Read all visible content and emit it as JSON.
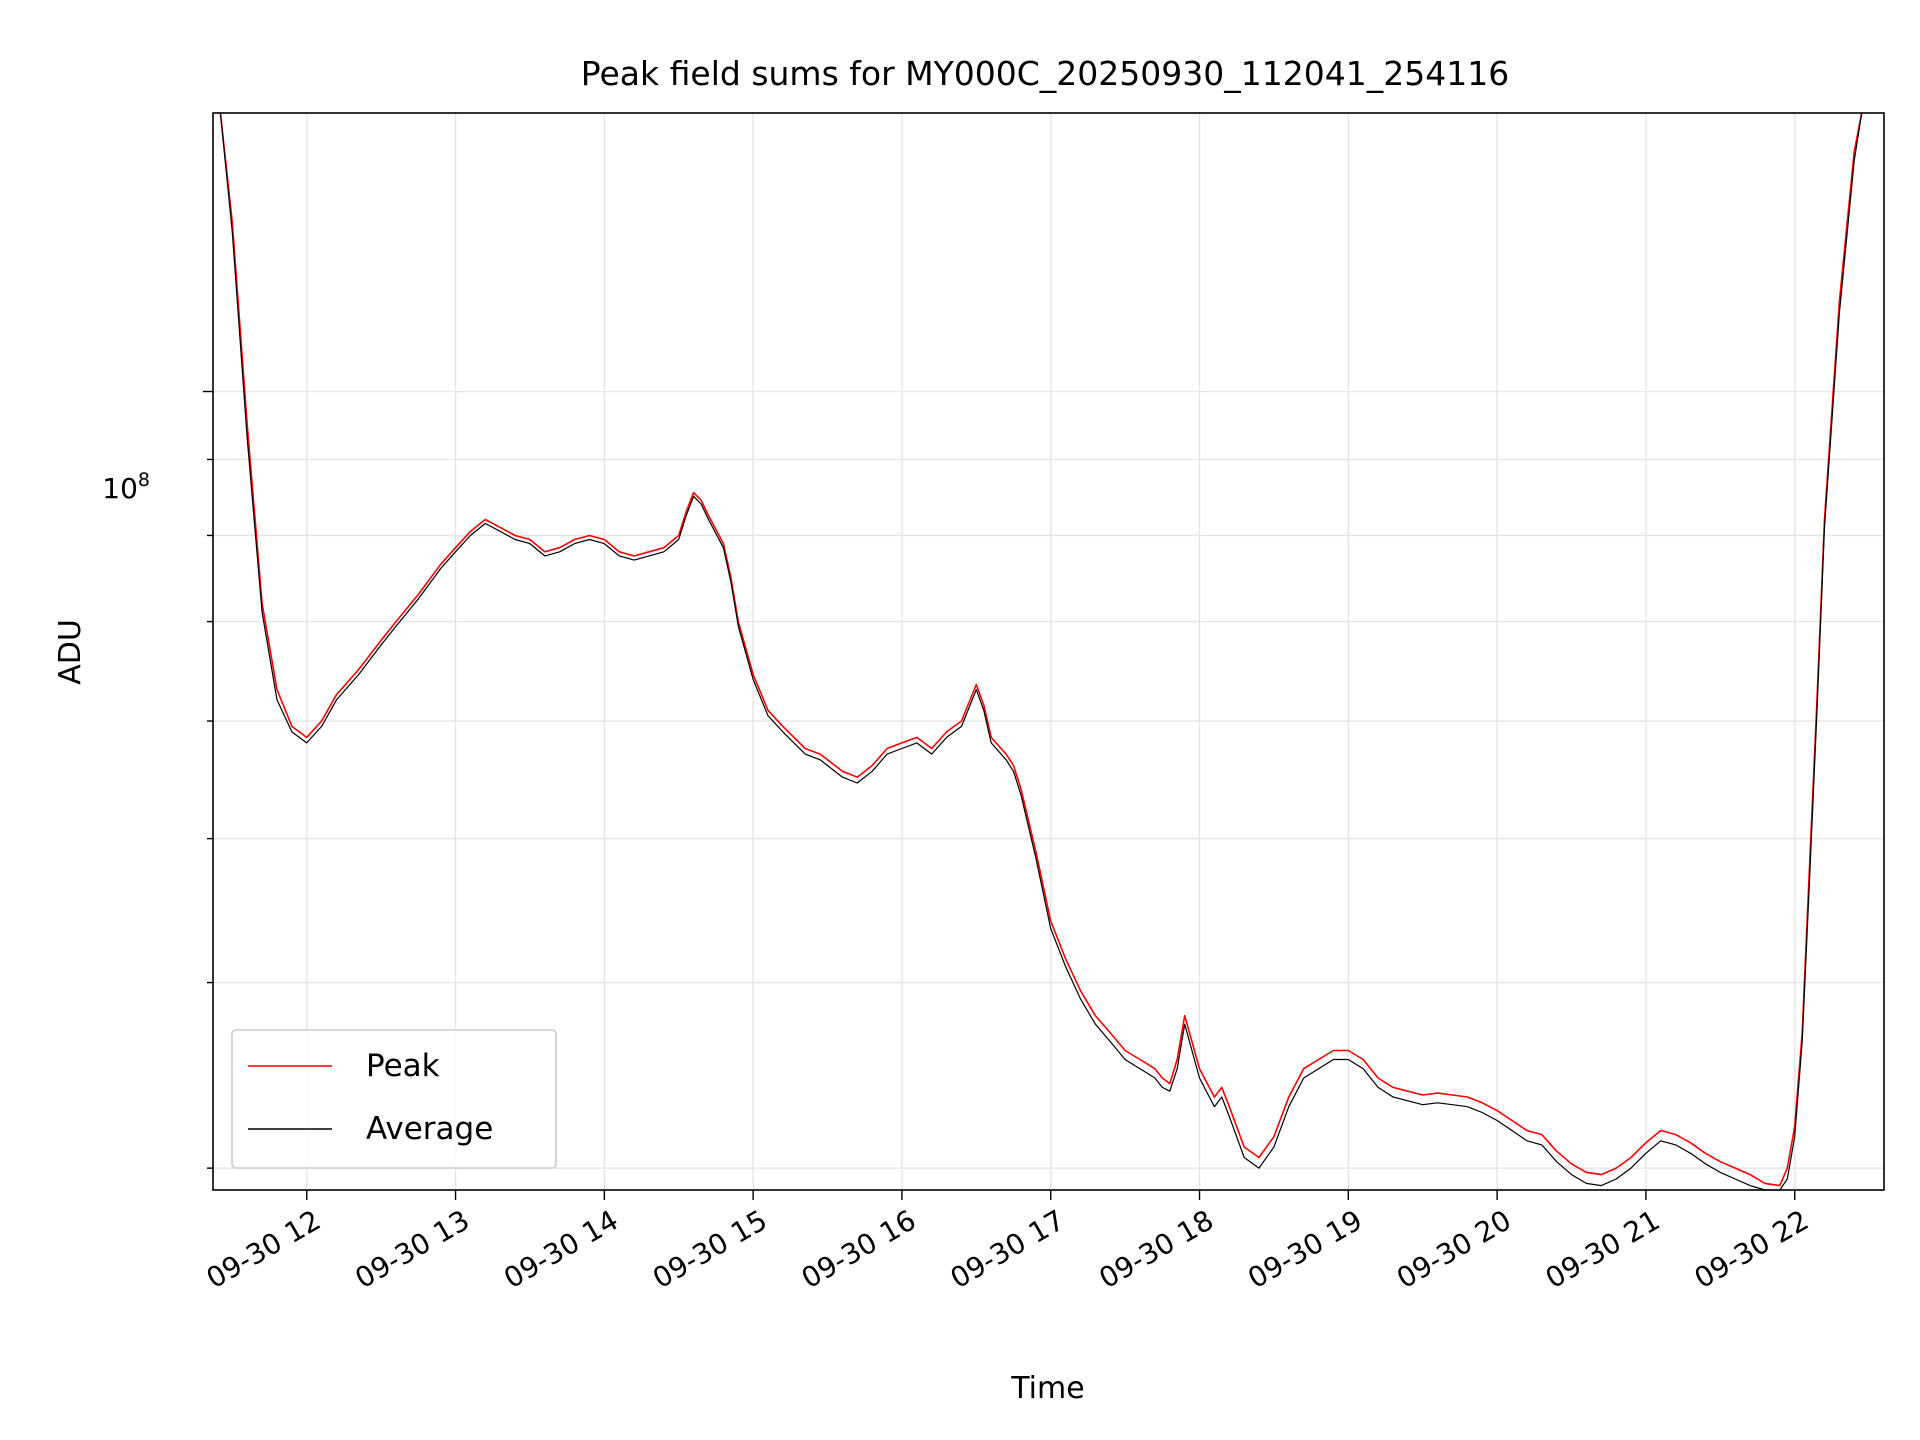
{
  "chart_data": {
    "type": "line",
    "title": "Peak field sums for MY000C_20250930_112041_254116",
    "xlabel": "Time",
    "ylabel": "ADU",
    "yscale": "log",
    "grid": true,
    "legend_position": "lower-left",
    "x_unit": "2025-09-30 local hour (decimal)",
    "xlim": [
      11.37,
      22.6
    ],
    "ylim": [
      29000000,
      154000000
    ],
    "x_ticks": [
      12,
      13,
      14,
      15,
      16,
      17,
      18,
      19,
      20,
      21,
      22
    ],
    "x_tick_labels": [
      "09-30 12",
      "09-30 13",
      "09-30 14",
      "09-30 15",
      "09-30 16",
      "09-30 17",
      "09-30 18",
      "09-30 19",
      "09-30 20",
      "09-30 21",
      "09-30 22"
    ],
    "y_major_tick_labels": [
      {
        "value": 100000000,
        "base": "10",
        "exp": "8"
      }
    ],
    "series": [
      {
        "name": "Peak",
        "color": "#ff0000",
        "x": [
          11.42,
          11.5,
          11.6,
          11.7,
          11.8,
          11.9,
          12.0,
          12.1,
          12.2,
          12.35,
          12.5,
          12.6,
          12.75,
          12.9,
          13.0,
          13.1,
          13.2,
          13.3,
          13.4,
          13.5,
          13.6,
          13.7,
          13.8,
          13.9,
          14.0,
          14.1,
          14.2,
          14.3,
          14.4,
          14.5,
          14.55,
          14.6,
          14.65,
          14.7,
          14.8,
          14.85,
          14.9,
          15.0,
          15.1,
          15.2,
          15.35,
          15.45,
          15.5,
          15.6,
          15.7,
          15.8,
          15.9,
          16.0,
          16.1,
          16.2,
          16.3,
          16.4,
          16.5,
          16.55,
          16.6,
          16.7,
          16.75,
          16.8,
          16.9,
          17.0,
          17.1,
          17.2,
          17.3,
          17.4,
          17.5,
          17.6,
          17.7,
          17.75,
          17.8,
          17.85,
          17.9,
          18.0,
          18.1,
          18.15,
          18.2,
          18.3,
          18.4,
          18.5,
          18.6,
          18.7,
          18.8,
          18.9,
          19.0,
          19.1,
          19.2,
          19.3,
          19.4,
          19.5,
          19.6,
          19.7,
          19.8,
          19.9,
          20.0,
          20.1,
          20.2,
          20.3,
          20.4,
          20.5,
          20.6,
          20.7,
          20.8,
          20.9,
          21.0,
          21.1,
          21.2,
          21.3,
          21.4,
          21.5,
          21.6,
          21.7,
          21.8,
          21.9,
          21.95,
          22.0,
          22.05,
          22.1,
          22.15,
          22.2,
          22.3,
          22.4,
          22.45
        ],
        "y": [
          154000000,
          130000000,
          95000000,
          72000000,
          63000000,
          59500000,
          58500000,
          60000000,
          62500000,
          65000000,
          68000000,
          70000000,
          73000000,
          76500000,
          78500000,
          80500000,
          82000000,
          81000000,
          80000000,
          79500000,
          78000000,
          78500000,
          79500000,
          80000000,
          79500000,
          78000000,
          77500000,
          78000000,
          78500000,
          80000000,
          83000000,
          85500000,
          84500000,
          82500000,
          79000000,
          75000000,
          70000000,
          64500000,
          61000000,
          59500000,
          57500000,
          57000000,
          56500000,
          55500000,
          55000000,
          56000000,
          57500000,
          58000000,
          58500000,
          57500000,
          59000000,
          60000000,
          63500000,
          61500000,
          58500000,
          57000000,
          56000000,
          54000000,
          49000000,
          44000000,
          41500000,
          39500000,
          38000000,
          37000000,
          36000000,
          35500000,
          35000000,
          34500000,
          34200000,
          35500000,
          38000000,
          35000000,
          33500000,
          34000000,
          33000000,
          31000000,
          30500000,
          31500000,
          33500000,
          35000000,
          35500000,
          36000000,
          36000000,
          35500000,
          34500000,
          34000000,
          33800000,
          33600000,
          33700000,
          33600000,
          33500000,
          33200000,
          32800000,
          32300000,
          31800000,
          31600000,
          30800000,
          30200000,
          29800000,
          29700000,
          30000000,
          30500000,
          31200000,
          31800000,
          31600000,
          31200000,
          30700000,
          30300000,
          30000000,
          29700000,
          29300000,
          29200000,
          30000000,
          32000000,
          37000000,
          48000000,
          62000000,
          82000000,
          115000000,
          145000000,
          154000000
        ]
      },
      {
        "name": "Average",
        "color": "#000000",
        "x": [
          11.42,
          11.5,
          11.6,
          11.7,
          11.8,
          11.9,
          12.0,
          12.1,
          12.2,
          12.35,
          12.5,
          12.6,
          12.75,
          12.9,
          13.0,
          13.1,
          13.2,
          13.3,
          13.4,
          13.5,
          13.6,
          13.7,
          13.8,
          13.9,
          14.0,
          14.1,
          14.2,
          14.3,
          14.4,
          14.5,
          14.55,
          14.6,
          14.65,
          14.7,
          14.8,
          14.85,
          14.9,
          15.0,
          15.1,
          15.2,
          15.35,
          15.45,
          15.5,
          15.6,
          15.7,
          15.8,
          15.9,
          16.0,
          16.1,
          16.2,
          16.3,
          16.4,
          16.5,
          16.55,
          16.6,
          16.7,
          16.75,
          16.8,
          16.9,
          17.0,
          17.1,
          17.2,
          17.3,
          17.4,
          17.5,
          17.6,
          17.7,
          17.75,
          17.8,
          17.85,
          17.9,
          18.0,
          18.1,
          18.15,
          18.2,
          18.3,
          18.4,
          18.5,
          18.6,
          18.7,
          18.8,
          18.9,
          19.0,
          19.1,
          19.2,
          19.3,
          19.4,
          19.5,
          19.6,
          19.7,
          19.8,
          19.9,
          20.0,
          20.1,
          20.2,
          20.3,
          20.4,
          20.5,
          20.6,
          20.7,
          20.8,
          20.9,
          21.0,
          21.1,
          21.2,
          21.3,
          21.4,
          21.5,
          21.6,
          21.7,
          21.8,
          21.9,
          21.95,
          22.0,
          22.05,
          22.1,
          22.15,
          22.2,
          22.3,
          22.4,
          22.45
        ],
        "y": [
          154000000,
          128000000,
          93000000,
          71000000,
          62000000,
          59000000,
          58000000,
          59500000,
          62000000,
          64500000,
          67500000,
          69500000,
          72500000,
          76000000,
          78000000,
          80000000,
          81500000,
          80500000,
          79500000,
          79000000,
          77500000,
          78000000,
          79000000,
          79500000,
          79000000,
          77500000,
          77000000,
          77500000,
          78000000,
          79500000,
          82500000,
          85000000,
          84000000,
          82000000,
          78500000,
          74500000,
          69500000,
          64000000,
          60500000,
          59000000,
          57000000,
          56500000,
          56000000,
          55000000,
          54500000,
          55500000,
          57000000,
          57500000,
          58000000,
          57000000,
          58500000,
          59500000,
          63000000,
          61000000,
          58000000,
          56500000,
          55500000,
          53500000,
          48500000,
          43500000,
          41000000,
          39000000,
          37500000,
          36500000,
          35500000,
          35000000,
          34500000,
          34000000,
          33800000,
          35000000,
          37500000,
          34500000,
          33000000,
          33500000,
          32500000,
          30500000,
          30000000,
          31000000,
          33000000,
          34500000,
          35000000,
          35500000,
          35500000,
          35000000,
          34000000,
          33500000,
          33300000,
          33100000,
          33200000,
          33100000,
          33000000,
          32700000,
          32300000,
          31800000,
          31300000,
          31100000,
          30300000,
          29700000,
          29300000,
          29200000,
          29500000,
          30000000,
          30700000,
          31300000,
          31100000,
          30700000,
          30200000,
          29800000,
          29500000,
          29200000,
          28800000,
          28700000,
          29500000,
          31500000,
          36500000,
          47000000,
          61000000,
          81000000,
          113000000,
          143000000,
          154000000
        ]
      }
    ]
  }
}
